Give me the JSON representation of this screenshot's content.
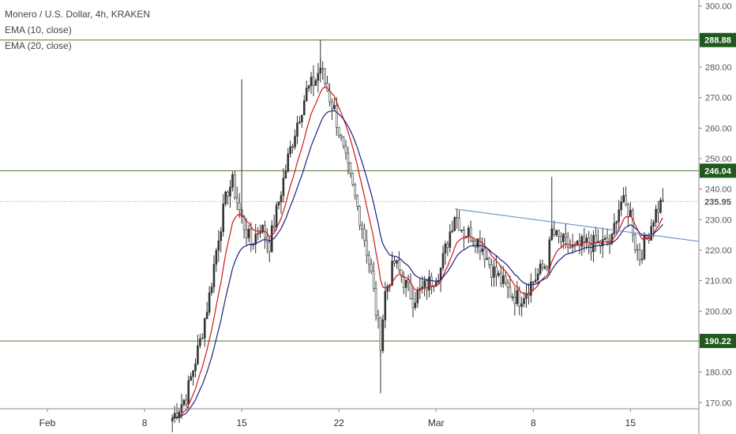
{
  "legend": {
    "title": "Monero / U.S. Dollar, 4h, KRAKEN",
    "ema10": "EMA (10, close)",
    "ema20": "EMA (20, close)"
  },
  "colors": {
    "up": "#333333",
    "level": "#4a7a2a",
    "badge": "#1e5a1e",
    "ema10": "#d01818",
    "ema20": "#1a237e",
    "trend": "#6b8fbf",
    "current": "#222222"
  },
  "chart_data": {
    "type": "candlestick",
    "title": "Monero / U.S. Dollar, 4h, KRAKEN",
    "ylim": [
      168,
      302
    ],
    "y_ticks": [
      "170.00",
      "180.00",
      "190.00",
      "200.00",
      "210.00",
      "220.00",
      "230.00",
      "240.00",
      "250.00",
      "260.00",
      "270.00",
      "280.00",
      "290.00",
      "300.00"
    ],
    "x_ticks": [
      {
        "label": "Feb",
        "i": 0
      },
      {
        "label": "8",
        "i": 42
      },
      {
        "label": "15",
        "i": 84
      },
      {
        "label": "22",
        "i": 126
      },
      {
        "label": "Mar",
        "i": 168
      },
      {
        "label": "8",
        "i": 210
      },
      {
        "label": "15",
        "i": 252
      }
    ],
    "levels": [
      {
        "value": 288.88,
        "label": "288.88"
      },
      {
        "value": 246.04,
        "label": "246.04"
      },
      {
        "value": 190.22,
        "label": "190.22"
      }
    ],
    "current_price": {
      "value": 235.95,
      "label": "235.95"
    },
    "trendline": {
      "from": {
        "i": 176,
        "y": 233.5
      },
      "to": {
        "i": 310,
        "y": 220
      }
    },
    "anchors": [
      [
        54,
        165
      ],
      [
        60,
        172
      ],
      [
        66,
        190
      ],
      [
        70,
        205
      ],
      [
        74,
        225
      ],
      [
        78,
        240
      ],
      [
        80,
        242
      ],
      [
        84,
        230
      ],
      [
        88,
        222
      ],
      [
        92,
        228
      ],
      [
        96,
        222
      ],
      [
        100,
        236
      ],
      [
        104,
        250
      ],
      [
        108,
        262
      ],
      [
        112,
        272
      ],
      [
        116,
        276
      ],
      [
        118,
        280
      ],
      [
        122,
        270
      ],
      [
        124,
        266
      ],
      [
        128,
        252
      ],
      [
        132,
        240
      ],
      [
        136,
        228
      ],
      [
        140,
        212
      ],
      [
        142,
        200
      ],
      [
        144,
        190
      ],
      [
        146,
        206
      ],
      [
        150,
        216
      ],
      [
        154,
        210
      ],
      [
        158,
        204
      ],
      [
        162,
        207
      ],
      [
        166,
        210
      ],
      [
        170,
        214
      ],
      [
        174,
        226
      ],
      [
        176,
        232
      ],
      [
        180,
        226
      ],
      [
        184,
        225
      ],
      [
        188,
        221
      ],
      [
        192,
        214
      ],
      [
        196,
        210
      ],
      [
        200,
        206
      ],
      [
        204,
        204
      ],
      [
        208,
        208
      ],
      [
        212,
        212
      ],
      [
        216,
        216
      ],
      [
        218,
        226
      ],
      [
        220,
        224
      ],
      [
        224,
        222
      ],
      [
        228,
        220
      ],
      [
        232,
        222
      ],
      [
        236,
        222
      ],
      [
        240,
        222
      ],
      [
        244,
        223
      ],
      [
        246,
        232
      ],
      [
        248,
        236
      ],
      [
        250,
        234
      ],
      [
        252,
        232
      ],
      [
        254,
        222
      ],
      [
        256,
        218
      ],
      [
        258,
        222
      ],
      [
        260,
        226
      ],
      [
        262,
        231
      ],
      [
        264,
        234
      ],
      [
        266,
        236
      ]
    ]
  }
}
